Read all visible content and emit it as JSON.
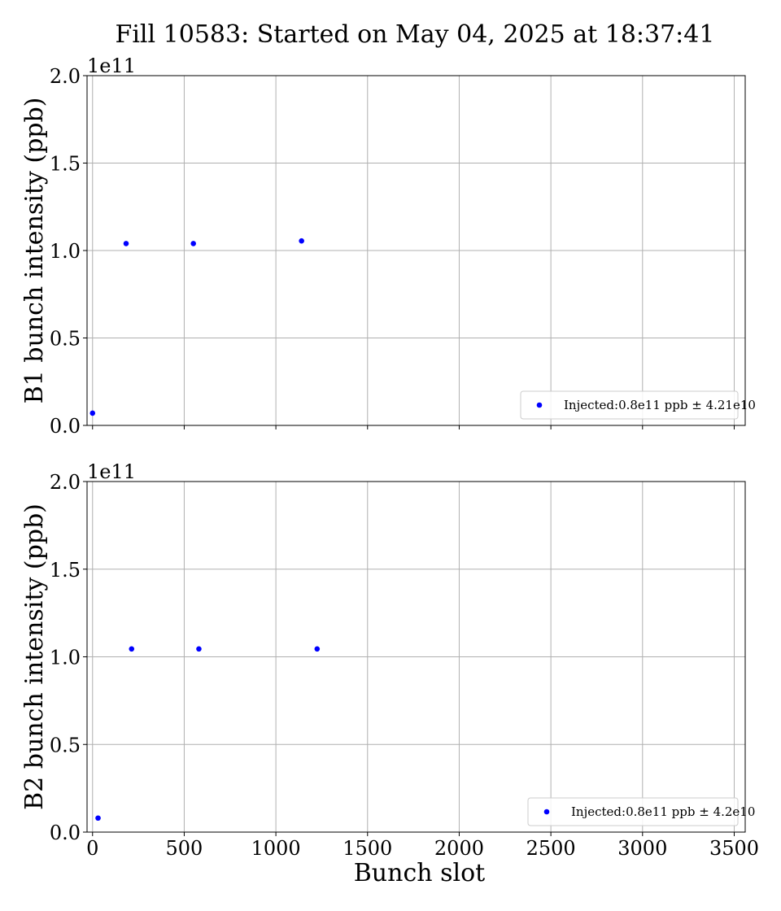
{
  "figure": {
    "title": "Fill 10583: Started on May 04, 2025 at 18:37:41"
  },
  "chart_data": [
    {
      "type": "scatter",
      "title": "Fill 10583: Started on May 04, 2025 at 18:37:41",
      "xlabel": "",
      "ylabel": "B1 bunch intensity (ppb)",
      "y_multiplier_label": "1e11",
      "xlim": [
        -30,
        3560
      ],
      "ylim": [
        0,
        2.0
      ],
      "y_units_scale": 100000000000.0,
      "xticks": [
        0,
        500,
        1000,
        1500,
        2000,
        2500,
        3000,
        3500
      ],
      "yticks": [
        "0.0",
        "0.5",
        "1.0",
        "1.5",
        "2.0"
      ],
      "xtick_labels_visible": false,
      "grid": true,
      "legend_position": "lower-right",
      "series": [
        {
          "name": "Injected:0.8e11 ppb $\\pm$ 4.21e10",
          "legend_label": "Injected:0.8e11 ppb ± 4.21e10",
          "color": "#0000ff",
          "marker": "circle",
          "x": [
            0,
            183,
            550,
            1140
          ],
          "y": [
            0.07,
            1.04,
            1.04,
            1.055
          ]
        }
      ]
    },
    {
      "type": "scatter",
      "title": "",
      "xlabel": "Bunch slot",
      "ylabel": "B2 bunch intensity (ppb)",
      "y_multiplier_label": "1e11",
      "xlim": [
        -30,
        3560
      ],
      "ylim": [
        0,
        2.0
      ],
      "y_units_scale": 100000000000.0,
      "xticks": [
        0,
        500,
        1000,
        1500,
        2000,
        2500,
        3000,
        3500
      ],
      "xtick_labels": [
        "0",
        "500",
        "1000",
        "1500",
        "2000",
        "2500",
        "3000",
        "3500"
      ],
      "yticks": [
        "0.0",
        "0.5",
        "1.0",
        "1.5",
        "2.0"
      ],
      "xtick_labels_visible": true,
      "grid": true,
      "legend_position": "lower-right",
      "series": [
        {
          "name": "Injected:0.8e11 ppb $\\pm$ 4.2e10",
          "legend_label": "Injected:0.8e11 ppb ± 4.2e10",
          "color": "#0000ff",
          "marker": "circle",
          "x": [
            30,
            213,
            580,
            1225
          ],
          "y": [
            0.08,
            1.045,
            1.045,
            1.045
          ]
        }
      ]
    }
  ]
}
